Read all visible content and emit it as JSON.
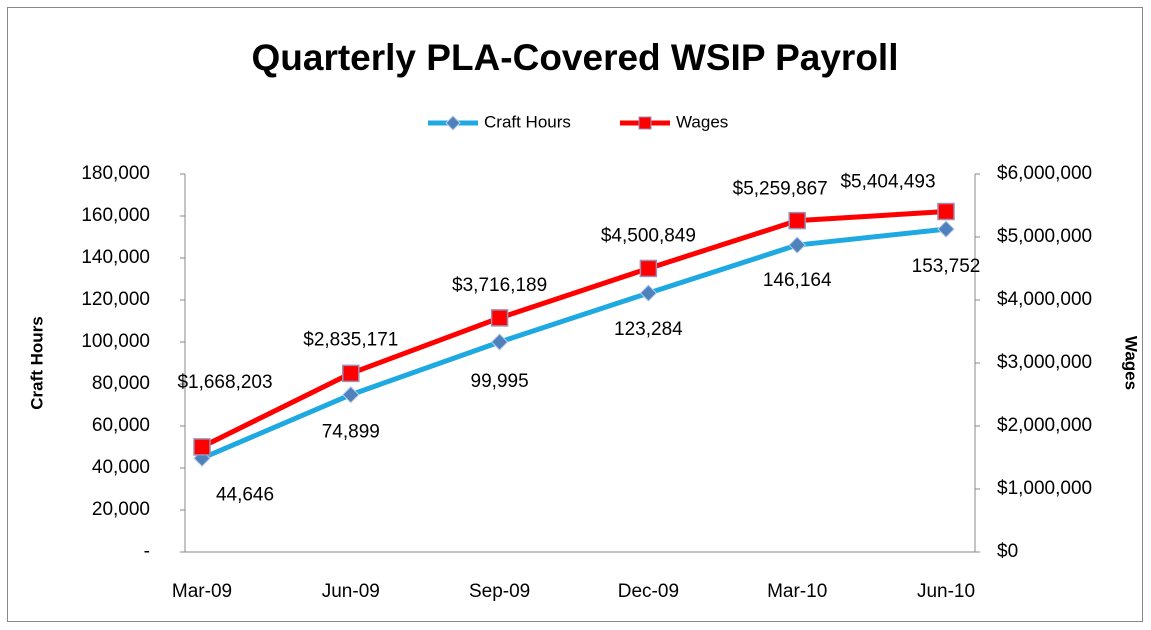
{
  "chart_data": {
    "type": "line",
    "title": "Quarterly PLA-Covered WSIP Payroll",
    "categories": [
      "Mar-09",
      "Jun-09",
      "Sep-09",
      "Dec-09",
      "Mar-10",
      "Jun-10"
    ],
    "ylabel": "Craft Hours",
    "y2label": "Wages",
    "ylim": [
      0,
      180000
    ],
    "yticks": [
      {
        "value": 0,
        "label": "-"
      },
      {
        "value": 20000,
        "label": "20,000"
      },
      {
        "value": 40000,
        "label": "40,000"
      },
      {
        "value": 60000,
        "label": "60,000"
      },
      {
        "value": 80000,
        "label": "80,000"
      },
      {
        "value": 100000,
        "label": "100,000"
      },
      {
        "value": 120000,
        "label": "120,000"
      },
      {
        "value": 140000,
        "label": "140,000"
      },
      {
        "value": 160000,
        "label": "160,000"
      },
      {
        "value": 180000,
        "label": "180,000"
      }
    ],
    "y2lim": [
      0,
      6000000
    ],
    "y2ticks": [
      {
        "value": 0,
        "label": "$0"
      },
      {
        "value": 1000000,
        "label": "$1,000,000"
      },
      {
        "value": 2000000,
        "label": "$2,000,000"
      },
      {
        "value": 3000000,
        "label": "$3,000,000"
      },
      {
        "value": 4000000,
        "label": "$4,000,000"
      },
      {
        "value": 5000000,
        "label": "$5,000,000"
      },
      {
        "value": 6000000,
        "label": "$6,000,000"
      }
    ],
    "legend": "top",
    "series": [
      {
        "name": "Craft Hours",
        "color": "#1fa9e1",
        "marker_color": "#4f81bd",
        "values": [
          44646,
          74899,
          99995,
          123284,
          146164,
          153752
        ],
        "value_labels": [
          "44,646",
          "74,899",
          "99,995",
          "123,284",
          "146,164",
          "153,752"
        ]
      },
      {
        "name": "Wages",
        "color": "#ff0000",
        "marker_color": "#ff0000",
        "axis": "y2",
        "values": [
          1668203,
          2835171,
          3716189,
          4500849,
          5259867,
          5404493
        ],
        "value_labels": [
          "$1,668,203",
          "$2,835,171",
          "$3,716,189",
          "$4,500,849",
          "$5,259,867",
          "$5,404,493"
        ]
      }
    ]
  }
}
